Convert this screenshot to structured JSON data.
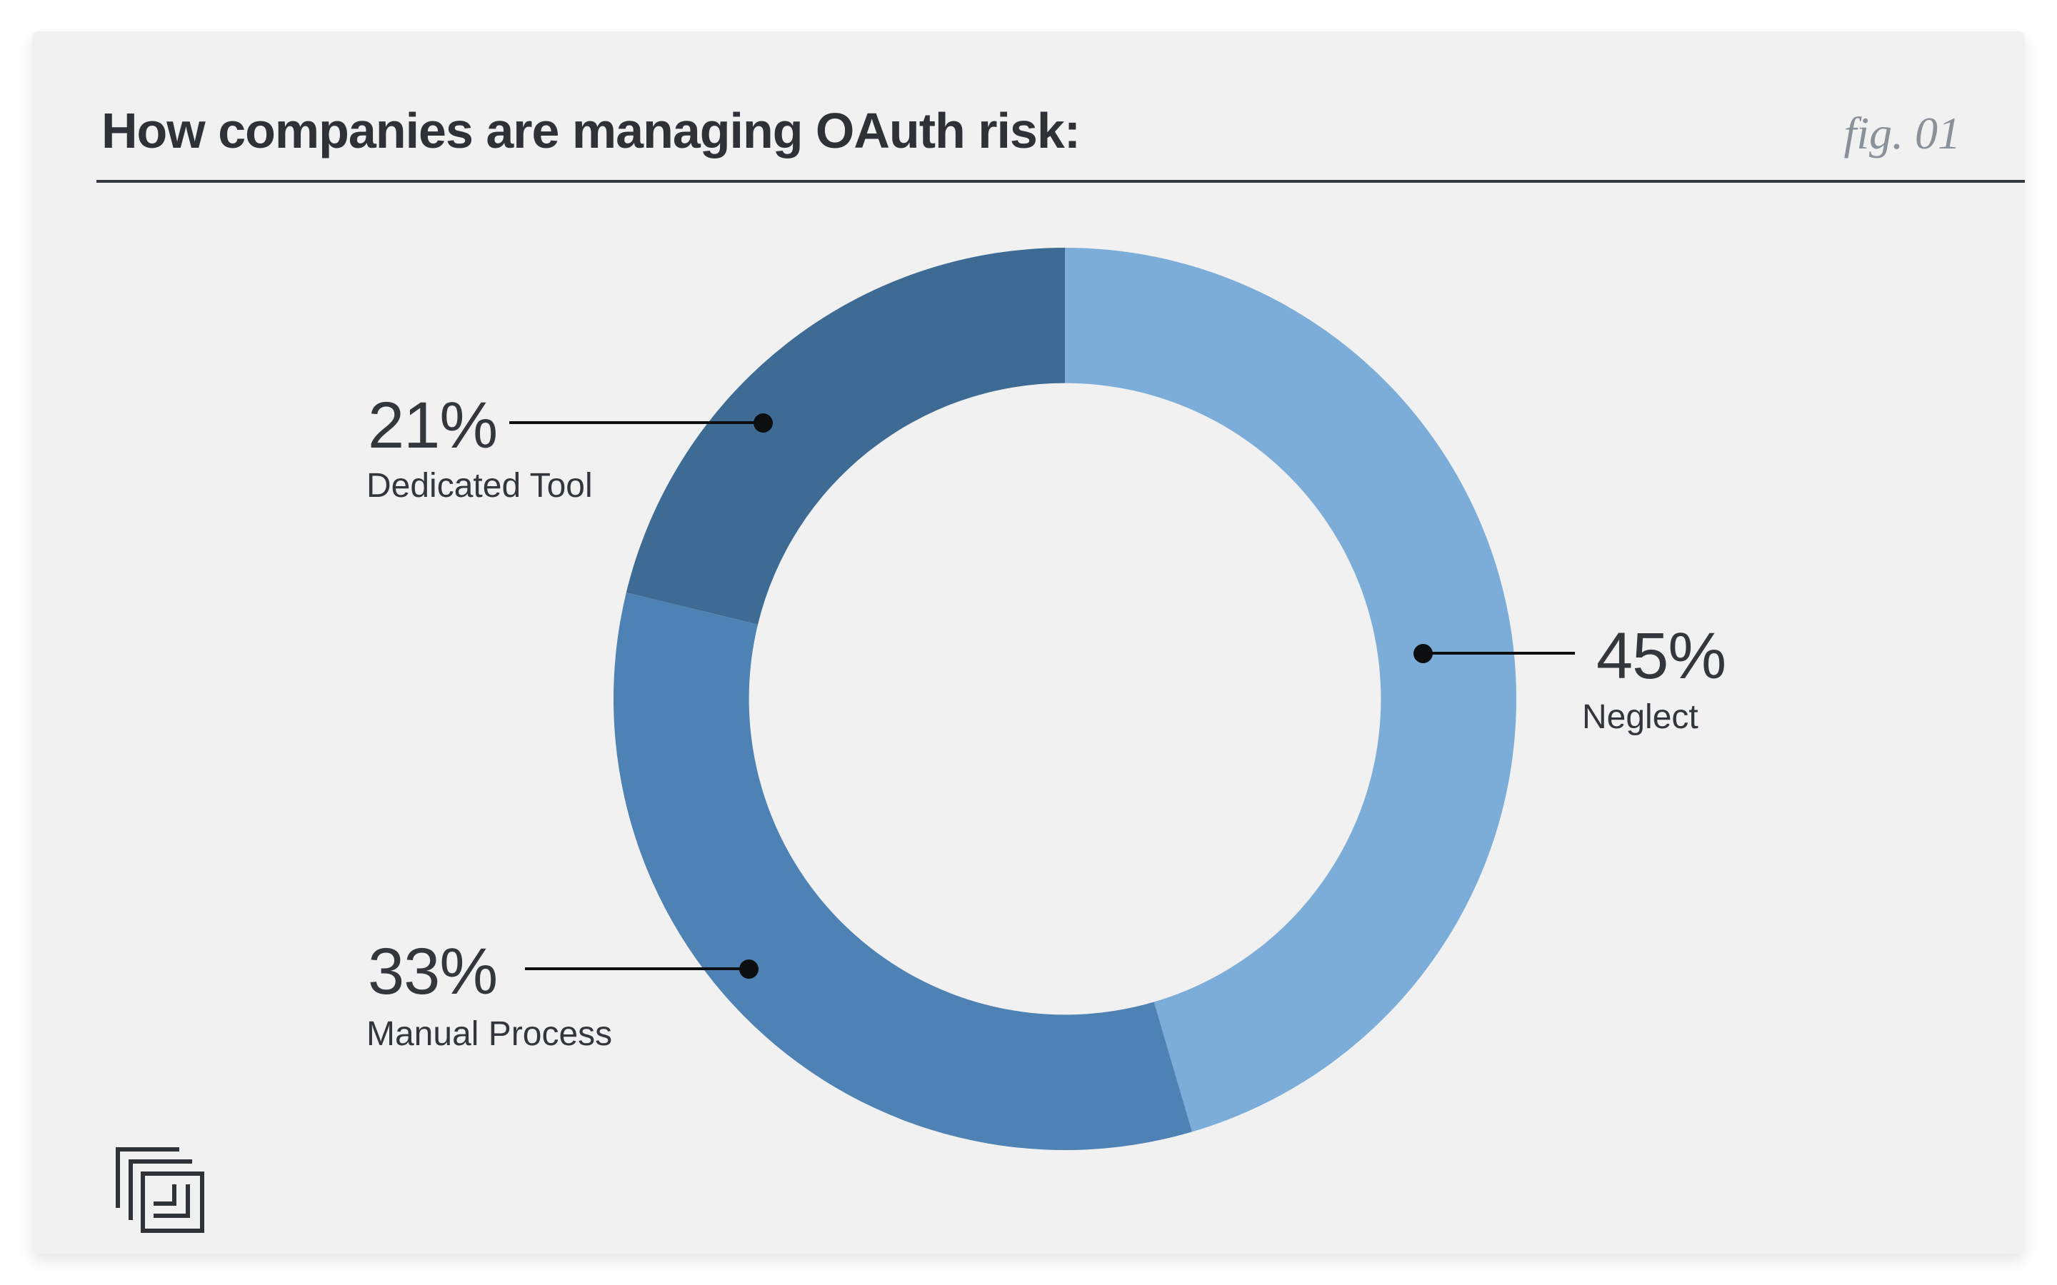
{
  "figure": {
    "title": "How companies are managing OAuth risk:",
    "fig_label": "fig. 01"
  },
  "chart_data": {
    "type": "pie",
    "subtype": "donut",
    "title": "How companies are managing OAuth risk:",
    "categories": [
      "Neglect",
      "Manual Process",
      "Dedicated Tool"
    ],
    "values": [
      45,
      33,
      21
    ],
    "unit": "%",
    "colors": [
      "#7cadd8",
      "#4e81b4",
      "#3e6b94"
    ],
    "start_angle_deg": 0,
    "direction": "clockwise",
    "inner_radius_ratio": 0.7,
    "legend_position": "callout-labels"
  },
  "annotations": {
    "neglect": {
      "value": "45%",
      "label": "Neglect"
    },
    "manual": {
      "value": "33%",
      "label": "Manual Process"
    },
    "dedicated": {
      "value": "21%",
      "label": "Dedicated Tool"
    }
  },
  "icons": {
    "logo": "layered-squares-logo-icon"
  },
  "colors": {
    "page_background": "#ffffff",
    "card_background": "#f1f1f2",
    "title_text": "#2e3237",
    "fig_label_text": "#8a9199",
    "annotation_text": "#33373c",
    "leader_line": "#0d0e10",
    "logo_stroke": "#2f3338"
  }
}
